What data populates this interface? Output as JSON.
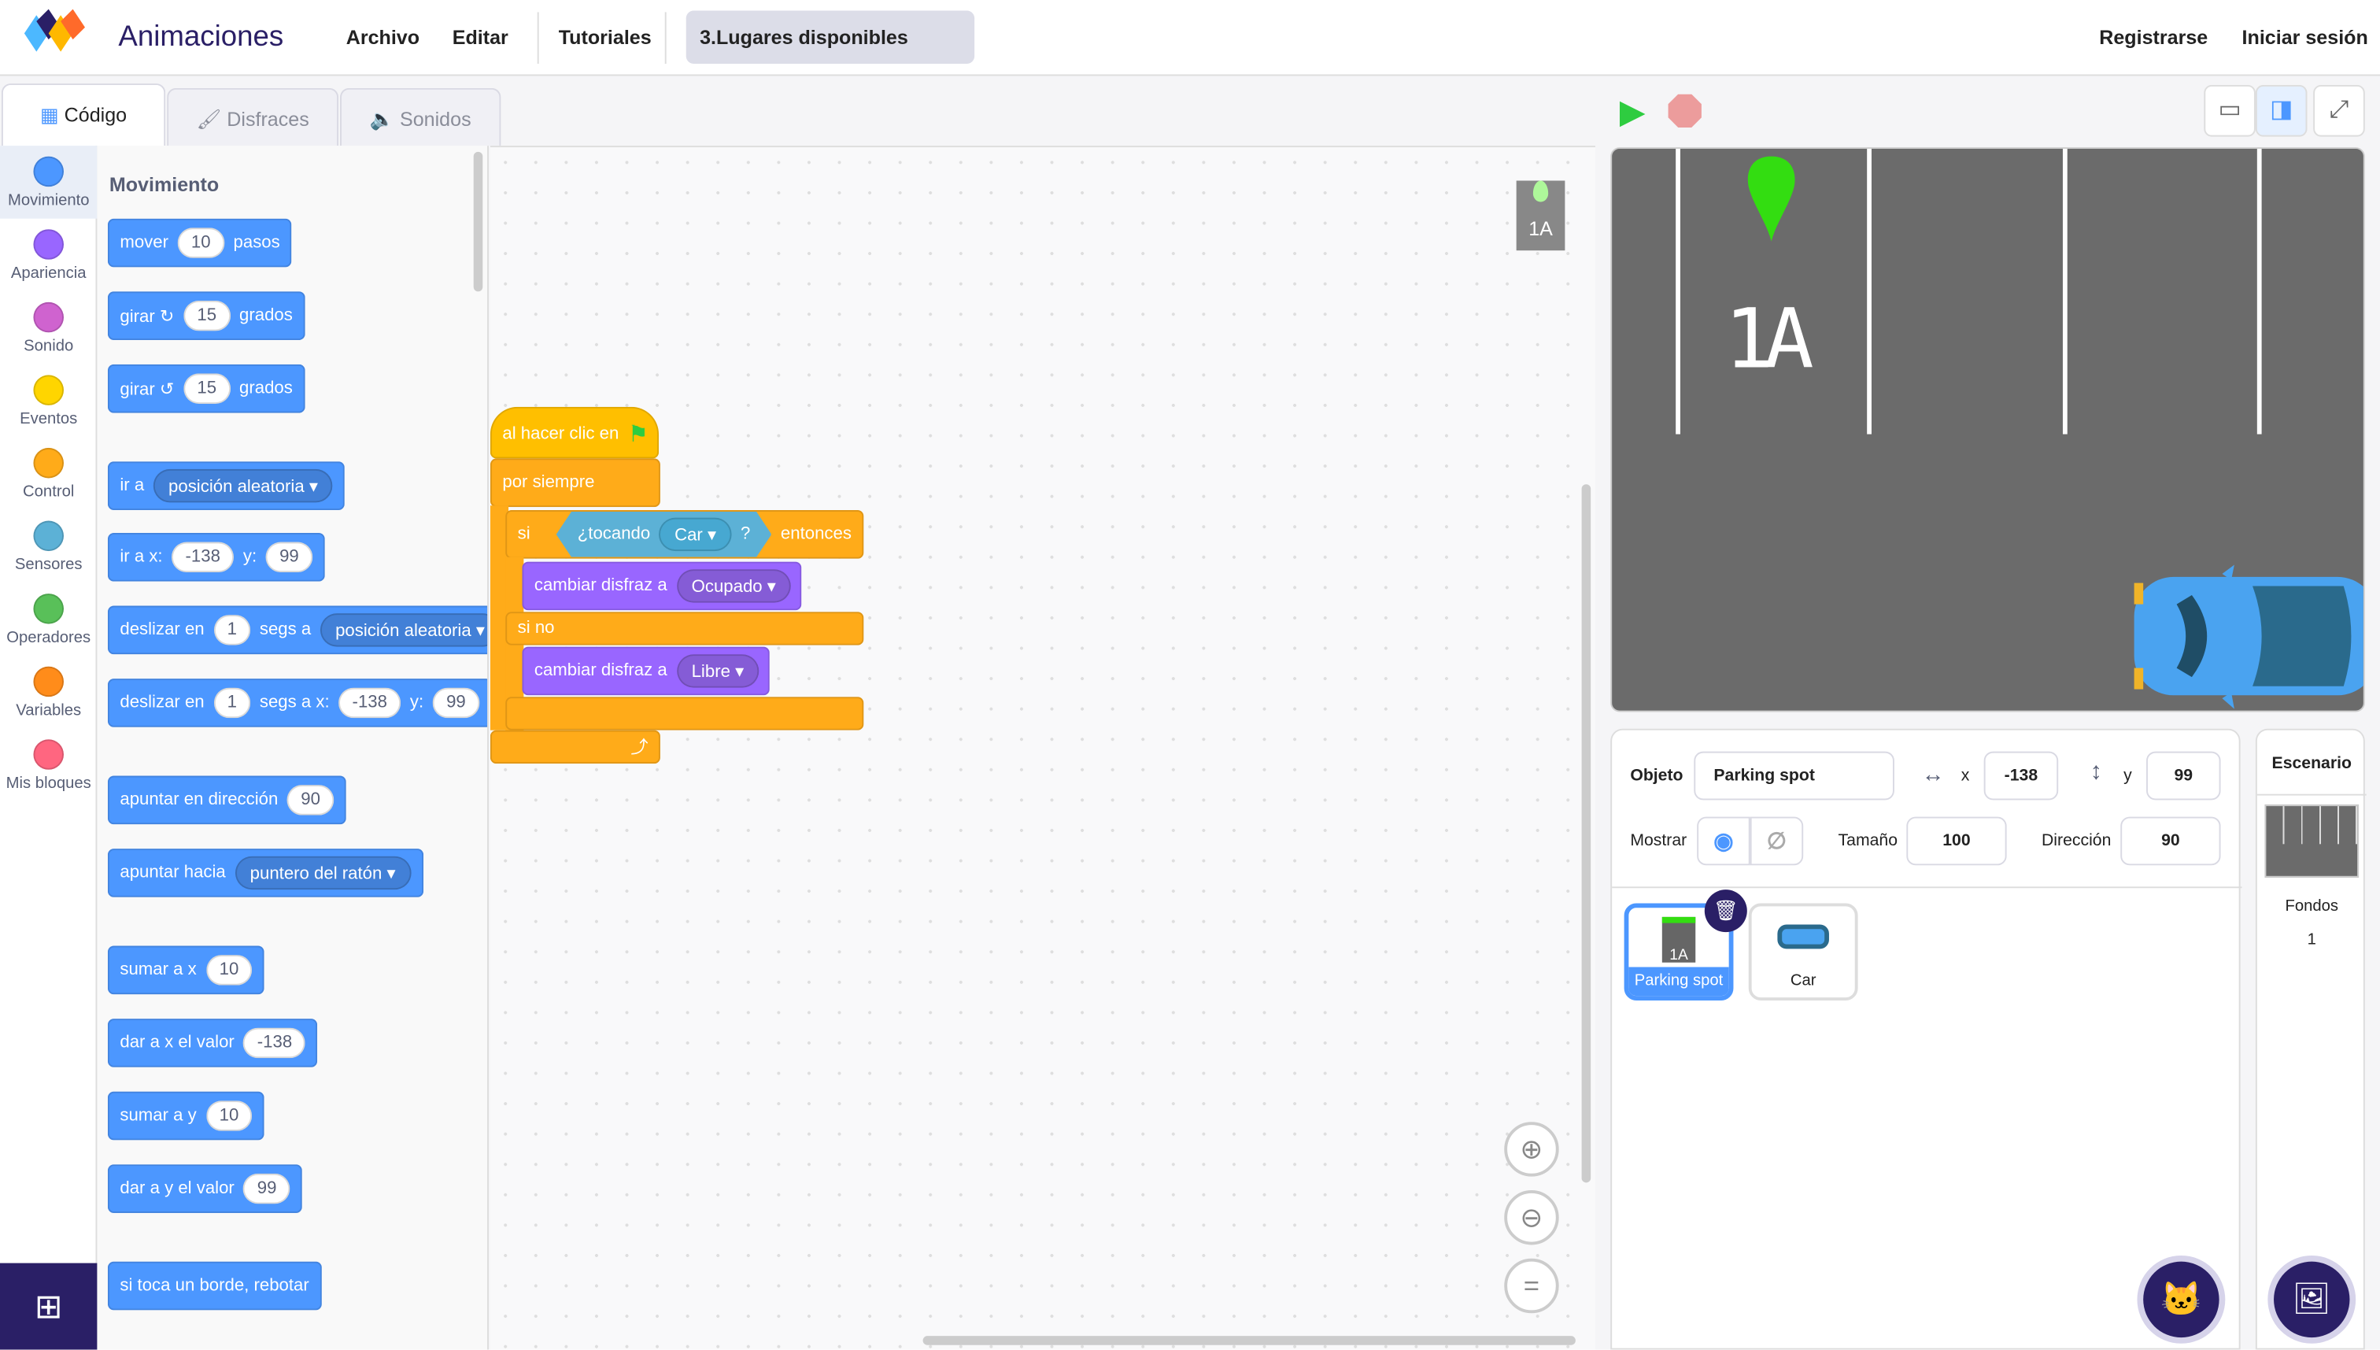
{
  "header": {
    "app_title": "Animaciones",
    "menu": [
      "Archivo",
      "Editar",
      "Tutoriales"
    ],
    "project_title": "3.Lugares disponibles",
    "register": "Registrarse",
    "login": "Iniciar sesión"
  },
  "tabs": [
    {
      "label": "Código",
      "icon": "code-icon"
    },
    {
      "label": "Disfraces",
      "icon": "brush-icon"
    },
    {
      "label": "Sonidos",
      "icon": "speaker-icon"
    }
  ],
  "categories": [
    {
      "label": "Movimiento",
      "color": "#4c97ff"
    },
    {
      "label": "Apariencia",
      "color": "#9966ff"
    },
    {
      "label": "Sonido",
      "color": "#cf63cf"
    },
    {
      "label": "Eventos",
      "color": "#ffd500"
    },
    {
      "label": "Control",
      "color": "#ffab19"
    },
    {
      "label": "Sensores",
      "color": "#5cb1d6"
    },
    {
      "label": "Operadores",
      "color": "#59c059"
    },
    {
      "label": "Variables",
      "color": "#ff8c1a"
    },
    {
      "label": "Mis bloques",
      "color": "#ff6680"
    }
  ],
  "palette": {
    "heading": "Movimiento",
    "blocks": [
      [
        {
          "t": "mover"
        },
        {
          "i": "10"
        },
        {
          "t": "pasos"
        }
      ],
      [
        {
          "t": "girar ↻"
        },
        {
          "i": "15"
        },
        {
          "t": "grados"
        }
      ],
      [
        {
          "t": "girar ↺"
        },
        {
          "i": "15"
        },
        {
          "t": "grados"
        }
      ],
      [
        {
          "t": "ir a"
        },
        {
          "d": "posición aleatoria ▾"
        }
      ],
      [
        {
          "t": "ir a x:"
        },
        {
          "i": "-138"
        },
        {
          "t": "y:"
        },
        {
          "i": "99"
        }
      ],
      [
        {
          "t": "deslizar en"
        },
        {
          "i": "1"
        },
        {
          "t": "segs a"
        },
        {
          "d": "posición aleatoria ▾"
        }
      ],
      [
        {
          "t": "deslizar en"
        },
        {
          "i": "1"
        },
        {
          "t": "segs a x:"
        },
        {
          "i": "-138"
        },
        {
          "t": "y:"
        },
        {
          "i": "99"
        }
      ],
      [
        {
          "t": "apuntar en dirección"
        },
        {
          "i": "90"
        }
      ],
      [
        {
          "t": "apuntar hacia"
        },
        {
          "d": "puntero del ratón ▾"
        }
      ],
      [
        {
          "t": "sumar a x"
        },
        {
          "i": "10"
        }
      ],
      [
        {
          "t": "dar a x el valor"
        },
        {
          "i": "-138"
        }
      ],
      [
        {
          "t": "sumar a y"
        },
        {
          "i": "10"
        }
      ],
      [
        {
          "t": "dar a y el valor"
        },
        {
          "i": "99"
        }
      ],
      [
        {
          "t": "si toca un borde, rebotar"
        }
      ]
    ]
  },
  "script": {
    "hat": "al hacer clic en",
    "forever": "por siempre",
    "if": "si",
    "touching": "¿tocando",
    "touching_target": "Car ▾",
    "question": "?",
    "then": "entonces",
    "switch1": "cambiar disfraz a",
    "costume1": "Ocupado ▾",
    "else": "si no",
    "switch2": "cambiar disfraz a",
    "costume2": "Libre ▾"
  },
  "stage": {
    "spot_label": "1A",
    "colors": {
      "asphalt": "#6b6b6b",
      "pin": "#33dd11",
      "car": "#4aa3f0"
    }
  },
  "sprite_info": {
    "object_label": "Objeto",
    "name": "Parking spot",
    "x_label": "x",
    "x": "-138",
    "y_label": "y",
    "y": "99",
    "show_label": "Mostrar",
    "size_label": "Tamaño",
    "size": "100",
    "direction_label": "Dirección",
    "direction": "90"
  },
  "sprites": [
    {
      "name": "Parking spot",
      "selected": true
    },
    {
      "name": "Car",
      "selected": false
    }
  ],
  "backdrop": {
    "title": "Escenario",
    "label": "Fondos",
    "count": "1"
  },
  "mini_sprite_label": "1A"
}
